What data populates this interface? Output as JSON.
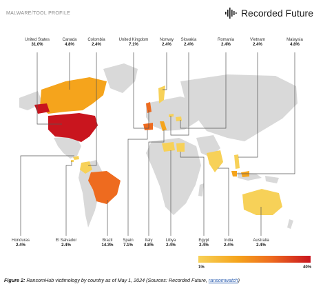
{
  "header": {
    "profile_label": "MALWARE/TOOL PROFILE",
    "brand_name": "Recorded Future",
    "brand_symbol": "recorded-future-logo"
  },
  "countries": {
    "united_states": {
      "name": "United States",
      "value": "31.0%"
    },
    "canada": {
      "name": "Canada",
      "value": "4.8%"
    },
    "colombia": {
      "name": "Colombia",
      "value": "2.4%"
    },
    "united_kingdom": {
      "name": "United Kingdom",
      "value": "7.1%"
    },
    "norway": {
      "name": "Norway",
      "value": "2.4%"
    },
    "slovakia": {
      "name": "Slovakia",
      "value": "2.4%"
    },
    "romania": {
      "name": "Romania",
      "value": "2.4%"
    },
    "vietnam": {
      "name": "Vietnam",
      "value": "2.4%"
    },
    "malaysia": {
      "name": "Malaysia",
      "value": "4.8%"
    },
    "honduras": {
      "name": "Honduras",
      "value": "2.4%"
    },
    "el_salvador": {
      "name": "El Salvador",
      "value": "2.4%"
    },
    "brazil": {
      "name": "Brazil",
      "value": "14.3%"
    },
    "spain": {
      "name": "Spain",
      "value": "7.1%"
    },
    "italy": {
      "name": "Italy",
      "value": "4.8%"
    },
    "libya": {
      "name": "Libya",
      "value": "2.4%"
    },
    "egypt": {
      "name": "Egypt",
      "value": "2.4%"
    },
    "india": {
      "name": "India",
      "value": "2.4%"
    },
    "australia": {
      "name": "Australia",
      "value": "2.4%"
    }
  },
  "legend": {
    "min_label": "1%",
    "max_label": "40%",
    "colors": [
      "#f7d158",
      "#f5a41c",
      "#ee6b1f",
      "#c9151e"
    ]
  },
  "colors": {
    "base_land": "#d9d9d9",
    "leader_line": "#555555"
  },
  "caption": {
    "figure_label": "Figure 2:",
    "text": " RansomHub victimology by country as of May 1, 2024 (Sources: Recorded Future, ",
    "link_text": "ransomwatch",
    "suffix": ")"
  }
}
